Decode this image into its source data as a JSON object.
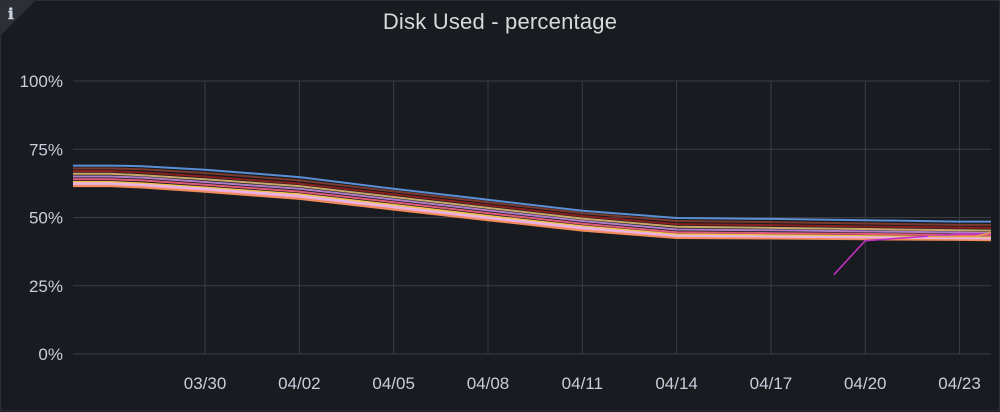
{
  "panel": {
    "title": "Disk Used - percentage",
    "info_icon": "info-icon"
  },
  "chart_data": {
    "type": "line",
    "title": "Disk Used - percentage",
    "xlabel": "",
    "ylabel": "",
    "ylim": [
      0,
      100
    ],
    "y_ticks": [
      0,
      25,
      50,
      75,
      100
    ],
    "y_tick_labels": [
      "0%",
      "25%",
      "50%",
      "75%",
      "100%"
    ],
    "x_ticks": [
      "03/30",
      "04/02",
      "04/05",
      "04/08",
      "04/11",
      "04/14",
      "04/17",
      "04/20",
      "04/23"
    ],
    "x_tick_days": [
      5,
      8,
      11,
      14,
      17,
      20,
      23,
      26,
      29
    ],
    "x_range_days": [
      0.8,
      30.0
    ],
    "x_axis_note_unit": "day offset where day 5 = 03/30",
    "grid": true,
    "legend": "none",
    "x": [
      0.8,
      2,
      3,
      5,
      8,
      11,
      14,
      17,
      20,
      23,
      26,
      29,
      30.0
    ],
    "series": [
      {
        "color": "#5b8fd6",
        "values": [
          69.0,
          69.0,
          68.8,
          67.5,
          64.8,
          60.5,
          56.5,
          52.5,
          49.8,
          49.5,
          49.0,
          48.5,
          48.5
        ]
      },
      {
        "color": "#7a3b2e",
        "values": [
          68.0,
          68.0,
          67.7,
          66.3,
          63.6,
          59.6,
          55.6,
          51.6,
          48.7,
          48.3,
          47.8,
          47.3,
          47.3
        ]
      },
      {
        "color": "#8a1f1f",
        "values": [
          67.0,
          67.0,
          66.5,
          65.0,
          62.4,
          58.5,
          54.5,
          50.5,
          47.6,
          47.2,
          46.7,
          46.3,
          46.2
        ]
      },
      {
        "color": "#c9a86a",
        "values": [
          66.0,
          66.0,
          65.5,
          64.0,
          61.5,
          57.5,
          53.5,
          49.6,
          46.6,
          46.2,
          45.8,
          45.3,
          45.2
        ]
      },
      {
        "color": "#b07ec7",
        "values": [
          65.0,
          65.0,
          64.6,
          63.0,
          60.5,
          56.6,
          52.6,
          48.7,
          45.6,
          45.3,
          44.9,
          44.5,
          44.3
        ]
      },
      {
        "color": "#e05a7a",
        "values": [
          64.0,
          64.0,
          63.6,
          62.0,
          59.5,
          55.6,
          51.6,
          47.7,
          44.6,
          44.3,
          44.0,
          43.6,
          43.5
        ]
      },
      {
        "color": "#f0c24a",
        "values": [
          63.0,
          63.0,
          62.5,
          61.0,
          58.5,
          54.6,
          50.6,
          46.8,
          43.8,
          43.5,
          43.2,
          42.8,
          42.7
        ]
      },
      {
        "color": "#f2a6c8",
        "values": [
          62.0,
          62.0,
          61.6,
          60.0,
          57.5,
          53.6,
          49.6,
          45.9,
          43.0,
          42.8,
          42.5,
          42.2,
          42.1
        ]
      },
      {
        "color": "#f28b5a",
        "values": [
          61.5,
          61.5,
          61.0,
          59.4,
          56.8,
          52.9,
          49.0,
          45.2,
          42.5,
          42.3,
          42.0,
          41.8,
          41.7
        ]
      },
      {
        "color": "#e8b4e8",
        "values": [
          62.5,
          62.5,
          62.0,
          60.5,
          58.0,
          54.0,
          50.0,
          46.3,
          43.3,
          43.0,
          42.7,
          42.4,
          42.3
        ]
      }
    ],
    "extra_series": [
      {
        "color": "#c030c0",
        "x": [
          25.0,
          26.0,
          29.0,
          30.0
        ],
        "values": [
          29.0,
          41.5,
          44.0,
          44.0
        ]
      },
      {
        "color": "#e8a050",
        "x": [
          28.0,
          29.5,
          30.0
        ],
        "values": [
          43.0,
          43.0,
          44.5
        ]
      }
    ]
  }
}
